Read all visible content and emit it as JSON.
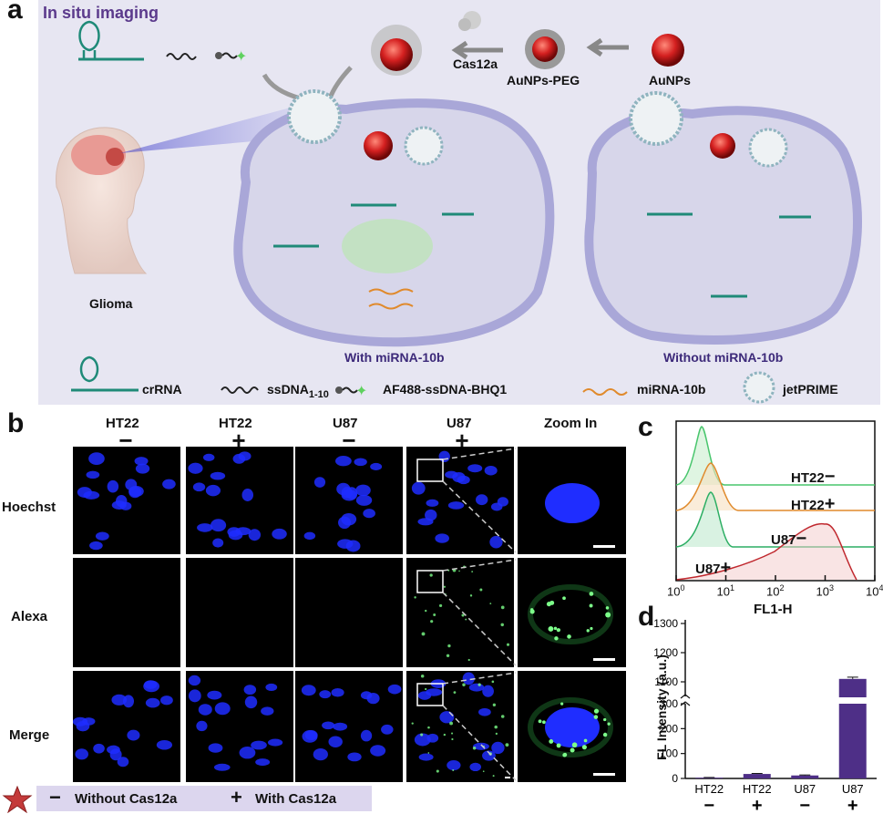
{
  "panel_a": {
    "letter": "a",
    "title": "In situ imaging",
    "labels": {
      "cas12a": "Cas12a",
      "aunps_peg": "AuNPs-PEG",
      "aunps": "AuNPs",
      "glioma": "Glioma",
      "with": "With miRNA-10b",
      "without": "Without miRNA-10b"
    },
    "legend": {
      "crrna": "crRNA",
      "ssdna": "ssDNA",
      "ssdna_sub": "1-10",
      "probe": "AF488-ssDNA-BHQ1",
      "mirna": "miRNA-10b",
      "jetprime": "jetPRIME"
    },
    "colors": {
      "background": "#e7e6f2",
      "title": "#5b3a8c",
      "cell": "#c8c6e6",
      "nanoparticle": "#d42020",
      "crrna": "#1f8a78"
    }
  },
  "panel_b": {
    "letter": "b",
    "columns": [
      {
        "name": "HT22",
        "sign": "−"
      },
      {
        "name": "HT22",
        "sign": "+"
      },
      {
        "name": "U87",
        "sign": "−"
      },
      {
        "name": "U87",
        "sign": "+"
      },
      {
        "name": "Zoom In",
        "sign": ""
      }
    ],
    "rows": [
      "Hoechst",
      "Alexa",
      "Merge"
    ],
    "footer": {
      "minus": "−",
      "without": "Without Cas12a",
      "plus": "+",
      "with": "With Cas12a"
    },
    "colors": {
      "nuclei": "#1f2dff",
      "signal": "#7dff8a"
    }
  },
  "panel_c": {
    "letter": "c",
    "xlabel": "FL1-H",
    "ticks": [
      "10",
      "10",
      "10",
      "10",
      "10"
    ],
    "tick_exponents": [
      "0",
      "1",
      "2",
      "3",
      "4"
    ],
    "curves": [
      {
        "label": "HT22",
        "sign": "−",
        "color": "#49c66d"
      },
      {
        "label": "HT22",
        "sign": "+",
        "color": "#e08a2c"
      },
      {
        "label": "U87",
        "sign": "−",
        "color": "#2cae63"
      },
      {
        "label": "U87",
        "sign": "+",
        "color": "#c0282e"
      }
    ]
  },
  "chart_data": {
    "type": "bar",
    "letter": "d",
    "categories": [
      "HT22",
      "HT22",
      "U87",
      "U87"
    ],
    "category_signs": [
      "−",
      "+",
      "−",
      "+"
    ],
    "values": [
      3,
      18,
      12,
      1110
    ],
    "errors": [
      1,
      2,
      2,
      6
    ],
    "ylabel": "FL Intensity (a.u.)",
    "yticks_lower": [
      "0",
      "100",
      "200",
      "300"
    ],
    "yticks_upper": [
      "1100",
      "1200",
      "1300"
    ],
    "axis_break": [
      300,
      1050
    ],
    "color": "#4e2f87"
  }
}
